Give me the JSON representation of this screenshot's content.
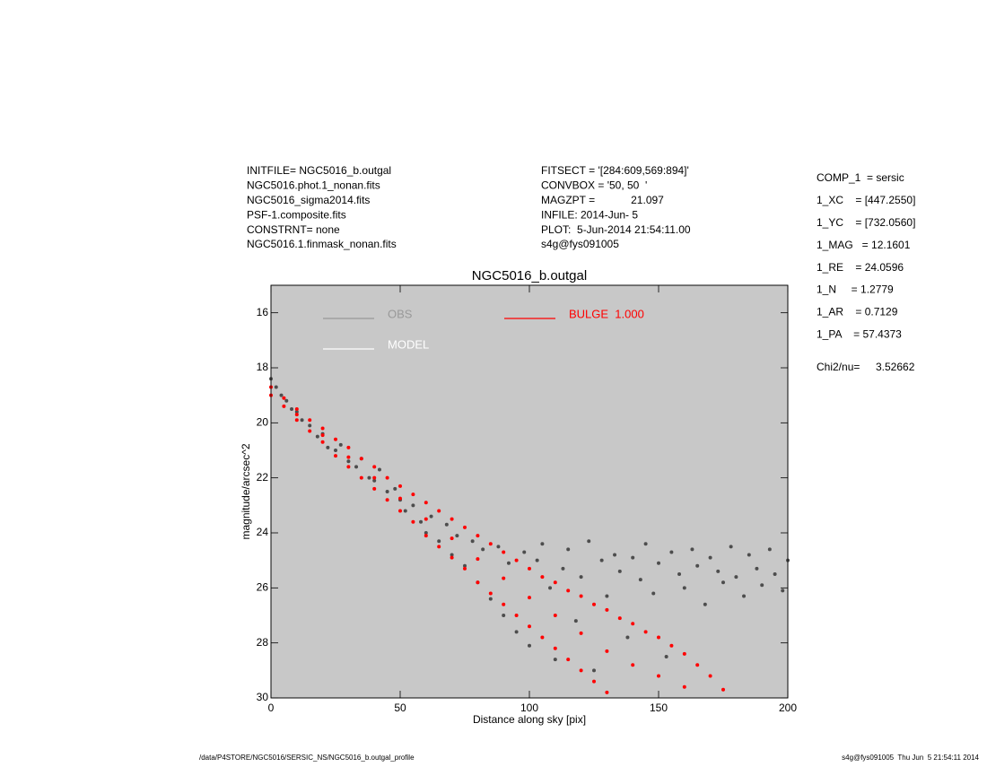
{
  "chart_data": {
    "type": "scatter",
    "title": "NGC5016_b.outgal",
    "xlabel": "Distance along sky [pix]",
    "ylabel": "magnitude/arcsec^2",
    "xlim": [
      0,
      200
    ],
    "ylim": [
      30,
      15
    ],
    "xticks": [
      0,
      50,
      100,
      150,
      200
    ],
    "yticks": [
      16,
      18,
      20,
      22,
      24,
      26,
      28,
      30
    ],
    "grid": false,
    "legend": "top-left",
    "background": "#c8c8c8",
    "info_left": [
      "INITFILE= NGC5016_b.outgal",
      "NGC5016.phot.1_nonan.fits",
      "NGC5016_sigma2014.fits",
      "PSF-1.composite.fits",
      "CONSTRNT= none",
      "NGC5016.1.finmask_nonan.fits"
    ],
    "info_middle": [
      "FITSECT = '[284:609,569:894]'",
      "CONVBOX = '50, 50  '",
      "MAGZPT =            21.097",
      "INFILE: 2014-Jun- 5",
      "PLOT:  5-Jun-2014 21:54:11.00",
      "s4g@fys091005"
    ],
    "info_right": [
      "COMP_1  = sersic",
      "1_XC    = [447.2550]",
      "1_YC    = [732.0560]",
      "1_MAG   = 12.1601",
      "1_RE    = 24.0596",
      "1_N     = 1.2779",
      "1_AR    = 0.7129",
      "1_PA    = 57.4373"
    ],
    "chi2_label": "Chi2/nu=",
    "chi2_value": "3.52662",
    "footer_left": "/data/P4STORE/NGC5016/SERSIC_NS/NGC5016_b.outgal_profile",
    "footer_right": "s4g@fys091005  Thu Jun  5 21:54:11 2014",
    "series": [
      {
        "name": "OBS",
        "color": "#4d4d4d",
        "legend_color": "#999999",
        "x": [
          0,
          2,
          4,
          6,
          8,
          10,
          12,
          15,
          18,
          20,
          22,
          25,
          27,
          30,
          33,
          35,
          38,
          40,
          42,
          45,
          48,
          50,
          52,
          55,
          58,
          60,
          62,
          65,
          68,
          70,
          72,
          75,
          78,
          80,
          82,
          85,
          88,
          90,
          92,
          95,
          98,
          100,
          103,
          105,
          108,
          110,
          113,
          115,
          118,
          120,
          123,
          125,
          128,
          130,
          133,
          135,
          138,
          140,
          143,
          145,
          148,
          150,
          153,
          155,
          158,
          160,
          163,
          165,
          168,
          170,
          173,
          175,
          178,
          180,
          183,
          185,
          188,
          190,
          193,
          195,
          198,
          200
        ],
        "values": [
          18.4,
          18.7,
          19.0,
          19.2,
          19.5,
          19.6,
          19.9,
          20.1,
          20.5,
          20.4,
          20.9,
          21.0,
          20.8,
          21.4,
          21.6,
          21.3,
          22.0,
          22.1,
          21.7,
          22.5,
          22.4,
          22.8,
          23.2,
          23.0,
          23.6,
          24.0,
          23.4,
          24.3,
          23.7,
          24.8,
          24.1,
          25.2,
          24.3,
          25.8,
          24.6,
          26.4,
          24.5,
          27.0,
          25.1,
          27.6,
          24.7,
          28.1,
          25.0,
          24.4,
          26.0,
          28.6,
          25.3,
          24.6,
          27.2,
          25.6,
          24.3,
          29.0,
          25.0,
          26.3,
          24.8,
          25.4,
          27.8,
          24.9,
          25.7,
          24.4,
          26.2,
          25.1,
          28.5,
          24.7,
          25.5,
          26.0,
          24.6,
          25.2,
          26.6,
          24.9,
          25.4,
          25.8,
          24.5,
          25.6,
          26.3,
          24.8,
          25.3,
          25.9,
          24.6,
          25.5,
          26.1,
          25.0
        ]
      },
      {
        "name": "MODEL",
        "color": "#ffffff",
        "legend_color": "#ffffff",
        "x": [],
        "values": []
      },
      {
        "name": "BULGE  1.000",
        "color": "#ff0000",
        "legend_color": "#ff0000",
        "x": [
          0,
          5,
          10,
          15,
          20,
          25,
          30,
          35,
          40,
          45,
          50,
          55,
          60,
          65,
          70,
          75,
          80,
          85,
          90,
          95,
          100,
          105,
          110,
          115,
          120,
          125,
          130,
          135,
          140,
          145,
          150,
          155,
          160,
          165,
          170,
          175,
          0,
          5,
          10,
          15,
          20,
          25,
          30,
          35,
          40,
          45,
          50,
          55,
          60,
          65,
          70,
          75,
          80,
          85,
          90,
          95,
          100,
          105,
          110,
          115,
          120,
          125,
          130,
          10,
          20,
          30,
          40,
          50,
          60,
          70,
          80,
          90,
          100,
          110,
          120,
          130,
          140,
          150,
          160
        ],
        "values": [
          18.7,
          19.1,
          19.5,
          19.9,
          20.2,
          20.6,
          20.9,
          21.3,
          21.6,
          22.0,
          22.3,
          22.6,
          22.9,
          23.2,
          23.5,
          23.8,
          24.1,
          24.4,
          24.7,
          25.0,
          25.3,
          25.6,
          25.8,
          26.1,
          26.3,
          26.6,
          26.8,
          27.1,
          27.3,
          27.6,
          27.8,
          28.1,
          28.4,
          28.8,
          29.2,
          29.7,
          19.0,
          19.4,
          19.9,
          20.3,
          20.7,
          21.2,
          21.6,
          22.0,
          22.4,
          22.8,
          23.2,
          23.6,
          24.1,
          24.5,
          24.9,
          25.3,
          25.8,
          26.2,
          26.6,
          27.0,
          27.4,
          27.8,
          28.2,
          28.6,
          29.0,
          29.4,
          29.8,
          19.7,
          20.45,
          21.25,
          22.0,
          22.75,
          23.5,
          24.2,
          24.95,
          25.65,
          26.35,
          27.0,
          27.65,
          28.3,
          28.8,
          29.2,
          29.6
        ]
      }
    ]
  }
}
